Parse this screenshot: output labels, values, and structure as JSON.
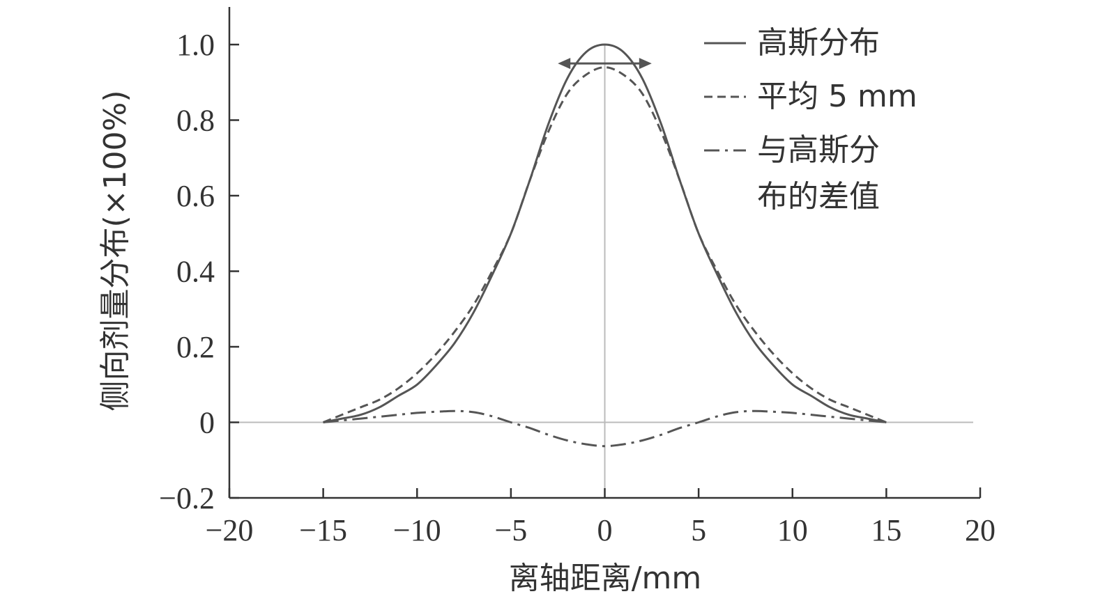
{
  "chart_data": {
    "type": "line",
    "title": "",
    "xlabel": "离轴距离/mm",
    "ylabel": "侧向剂量分布(×100%)",
    "xlim": [
      -20,
      20
    ],
    "ylim": [
      -0.2,
      1.0
    ],
    "xticks": [
      -20,
      -15,
      -10,
      -5,
      0,
      5,
      10,
      15,
      20
    ],
    "xtick_labels": [
      "−20",
      "−15",
      "−10",
      "−5",
      "0",
      "5",
      "10",
      "15",
      "20"
    ],
    "yticks": [
      -0.2,
      0,
      0.2,
      0.4,
      0.6,
      0.8,
      1.0
    ],
    "ytick_labels": [
      "−0.2",
      "0",
      "0.2",
      "0.4",
      "0.6",
      "0.8",
      "1.0"
    ],
    "grid": false,
    "legend_position": "top-right",
    "colors": {
      "line": "#555555",
      "axis": "#333333",
      "zero_line": "#bbbbbb"
    },
    "annotation": {
      "type": "double-arrow",
      "x_from": -2.5,
      "x_to": 2.5,
      "y": 0.95
    },
    "series": [
      {
        "name": "高斯分布",
        "style": "solid",
        "x": [
          -15,
          -14,
          -13,
          -12,
          -11,
          -10,
          -9,
          -8,
          -7,
          -6,
          -5,
          -4,
          -3,
          -2,
          -1,
          0,
          1,
          2,
          3,
          4,
          5,
          6,
          7,
          8,
          9,
          10,
          11,
          12,
          13,
          14,
          15
        ],
        "y": [
          0.0,
          0.01,
          0.02,
          0.04,
          0.07,
          0.1,
          0.15,
          0.21,
          0.29,
          0.39,
          0.5,
          0.64,
          0.79,
          0.91,
          0.98,
          1.0,
          0.98,
          0.91,
          0.79,
          0.64,
          0.5,
          0.39,
          0.29,
          0.21,
          0.15,
          0.1,
          0.07,
          0.04,
          0.02,
          0.01,
          0.0
        ]
      },
      {
        "name": "平均 5 mm",
        "style": "dashed",
        "x": [
          -15,
          -14,
          -13,
          -12,
          -11,
          -10,
          -9,
          -8,
          -7,
          -6,
          -5,
          -4,
          -3,
          -2,
          -1,
          0,
          1,
          2,
          3,
          4,
          5,
          6,
          7,
          8,
          9,
          10,
          11,
          12,
          13,
          14,
          15
        ],
        "y": [
          0.0,
          0.02,
          0.04,
          0.06,
          0.09,
          0.13,
          0.18,
          0.24,
          0.31,
          0.4,
          0.5,
          0.64,
          0.77,
          0.87,
          0.92,
          0.94,
          0.92,
          0.87,
          0.77,
          0.64,
          0.5,
          0.4,
          0.31,
          0.24,
          0.18,
          0.13,
          0.09,
          0.06,
          0.04,
          0.02,
          0.0
        ]
      },
      {
        "name": "与高斯分布的差值",
        "style": "dash-dot",
        "x": [
          -15,
          -14,
          -13,
          -12,
          -11,
          -10,
          -9,
          -8,
          -7,
          -6,
          -5,
          -4,
          -3,
          -2,
          -1,
          0,
          1,
          2,
          3,
          4,
          5,
          6,
          7,
          8,
          9,
          10,
          11,
          12,
          13,
          14,
          15
        ],
        "y": [
          0.0,
          0.005,
          0.01,
          0.015,
          0.02,
          0.025,
          0.028,
          0.03,
          0.027,
          0.016,
          0.0,
          -0.015,
          -0.033,
          -0.048,
          -0.058,
          -0.063,
          -0.058,
          -0.048,
          -0.033,
          -0.015,
          0.0,
          0.016,
          0.027,
          0.03,
          0.028,
          0.025,
          0.02,
          0.015,
          0.01,
          0.005,
          0.0
        ]
      }
    ]
  },
  "legend": {
    "items": [
      {
        "label_lines": [
          "高斯分布"
        ]
      },
      {
        "label_lines": [
          "平均 5 mm"
        ]
      },
      {
        "label_lines": [
          "与高斯分",
          "布的差值"
        ]
      }
    ]
  }
}
